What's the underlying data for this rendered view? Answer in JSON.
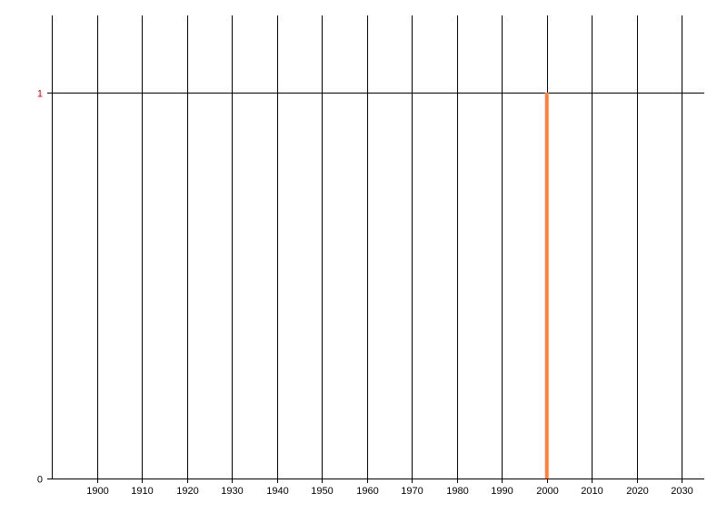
{
  "chart_data": {
    "type": "bar",
    "title": "",
    "xlabel": "",
    "ylabel": "",
    "xlim": [
      1890,
      2035
    ],
    "ylim": [
      0,
      1.2
    ],
    "x_ticks": [
      1900,
      1910,
      1920,
      1930,
      1940,
      1950,
      1960,
      1970,
      1980,
      1990,
      2000,
      2010,
      2020,
      2030
    ],
    "y_ticks": [
      0,
      1
    ],
    "y_tick_colors": {
      "0": "#000000",
      "1": "#cc0000"
    },
    "grid": {
      "vertical": true,
      "horizontal": true
    },
    "series": [
      {
        "x": [
          2000
        ],
        "values": [
          1
        ],
        "color": "#ff7f3f"
      }
    ]
  }
}
